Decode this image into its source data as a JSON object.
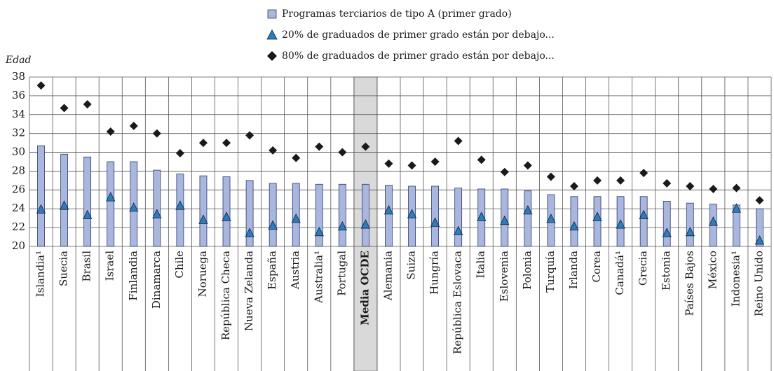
{
  "chart_data": {
    "type": "bar",
    "y_label": "Edad",
    "categories": [
      "Islandia¹",
      "Suecia",
      "Brasil",
      "Israel",
      "Finlandia",
      "Dinamarca",
      "Chile",
      "Noruega",
      "República Checa",
      "Nueva Zelanda",
      "España",
      "Austria",
      "Australia¹",
      "Portugal",
      "Media OCDE",
      "Alemania",
      "Suiza",
      "Hungría",
      "República Eslovaca",
      "Italia",
      "Eslovenia",
      "Polonia",
      "Turquía",
      "Irlanda",
      "Corea",
      "Canadá¹",
      "Grecia",
      "Estonia",
      "Países Bajos",
      "México",
      "Indonesia¹",
      "Reino Unido"
    ],
    "series": [
      {
        "name": "Programas terciarios de tipo A (primer grado)",
        "marker": "bar",
        "color": "#a9b6dd",
        "values": [
          30.7,
          29.8,
          29.5,
          29.0,
          29.0,
          28.1,
          27.7,
          27.5,
          27.4,
          27.0,
          26.7,
          26.7,
          26.6,
          26.6,
          26.6,
          26.5,
          26.4,
          26.4,
          26.2,
          26.1,
          26.1,
          25.9,
          25.5,
          25.3,
          25.3,
          25.3,
          25.3,
          24.8,
          24.6,
          24.5,
          24.4,
          24.0
        ]
      },
      {
        "name": "20% de graduados de primer grado están por debajo...",
        "marker": "triangle",
        "color": "#2f7bbf",
        "values": [
          23.9,
          24.3,
          23.3,
          25.2,
          24.1,
          23.4,
          24.3,
          22.8,
          23.1,
          21.4,
          22.2,
          22.9,
          21.5,
          22.1,
          22.3,
          23.8,
          23.4,
          22.5,
          21.6,
          23.1,
          22.7,
          23.8,
          22.9,
          22.1,
          23.1,
          22.3,
          23.3,
          21.4,
          21.5,
          22.6,
          24.0,
          20.6
        ]
      },
      {
        "name": "80% de graduados de primer grado están por debajo...",
        "marker": "diamond",
        "color": "#1a1a1a",
        "values": [
          37.1,
          34.7,
          35.1,
          32.2,
          32.8,
          32.0,
          29.9,
          31.0,
          31.0,
          31.8,
          30.2,
          29.4,
          30.6,
          30.0,
          30.6,
          28.8,
          28.6,
          29.0,
          31.2,
          29.2,
          27.9,
          28.6,
          27.4,
          26.4,
          27.0,
          27.0,
          27.8,
          26.7,
          26.4,
          26.1,
          26.2,
          24.9
        ]
      }
    ],
    "ylim": [
      20,
      38
    ],
    "yticks": [
      20,
      22,
      24,
      26,
      28,
      30,
      32,
      34,
      36,
      38
    ],
    "grid": true,
    "highlight": 14,
    "highlight_color": "#d9d9d9"
  }
}
